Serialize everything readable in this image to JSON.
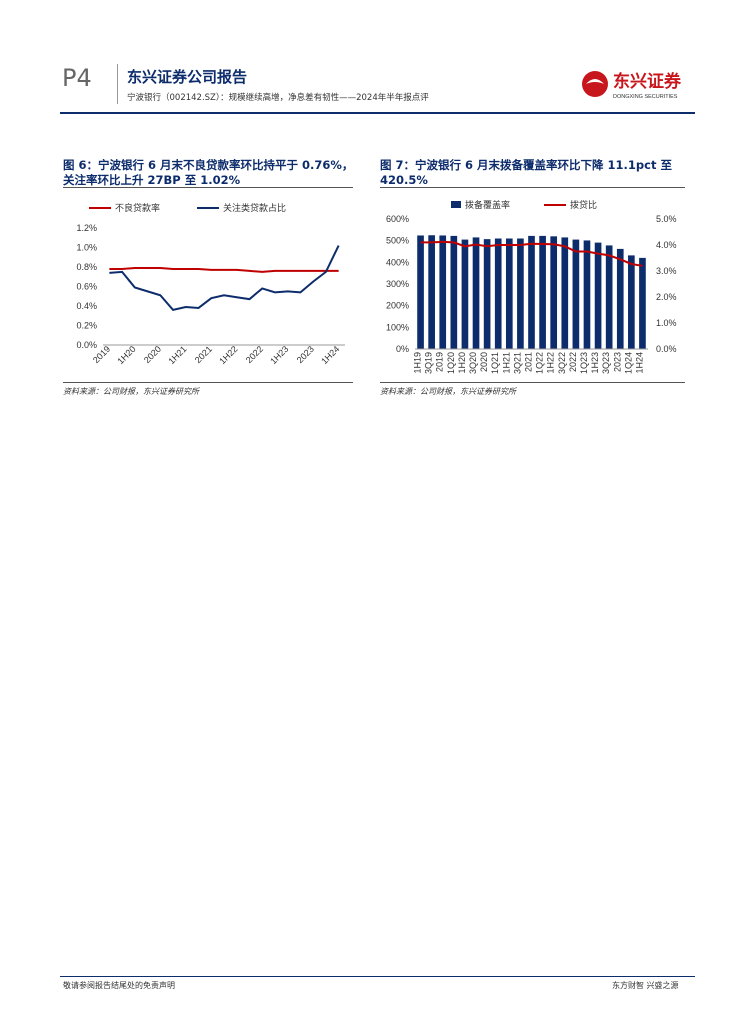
{
  "header": {
    "page": "P4",
    "title": "东兴证券公司报告",
    "subtitle": "宁波银行（002142.SZ）：规模继续高增，净息差有韧性——2024年半年报点评",
    "logo_cn": "东兴证券",
    "logo_en": "DONGXING SECURITIES"
  },
  "chart_data": [
    {
      "type": "line",
      "title": "图 6：宁波银行 6 月末不良贷款率环比持平于 0.76%，关注率环比上升 27BP 至 1.02%",
      "source": "资料来源：公司财报，东兴证券研究所",
      "categories": [
        "2019",
        null,
        "1H20",
        null,
        "2020",
        null,
        "1H21",
        null,
        "2021",
        null,
        "1H22",
        null,
        "2022",
        null,
        "1H23",
        null,
        "2023",
        null,
        "1H24"
      ],
      "series": [
        {
          "name": "不良贷款率",
          "color": "#c00000",
          "values": [
            0.78,
            0.78,
            0.79,
            0.79,
            0.79,
            0.78,
            0.78,
            0.78,
            0.77,
            0.77,
            0.77,
            0.76,
            0.75,
            0.76,
            0.76,
            0.76,
            0.76,
            0.76,
            0.76
          ]
        },
        {
          "name": "关注类贷款占比",
          "color": "#0d2c6c",
          "values": [
            0.74,
            0.75,
            0.59,
            0.55,
            0.51,
            0.36,
            0.39,
            0.38,
            0.48,
            0.51,
            0.49,
            0.47,
            0.58,
            0.54,
            0.55,
            0.54,
            0.65,
            0.75,
            1.02
          ]
        }
      ],
      "ylim": [
        0,
        1.2
      ],
      "yticks": [
        {
          "value": 0,
          "label": "0.0%"
        },
        {
          "value": 0.2,
          "label": "0.2%"
        },
        {
          "value": 0.4,
          "label": "0.4%"
        },
        {
          "value": 0.6,
          "label": "0.6%"
        },
        {
          "value": 0.8,
          "label": "0.8%"
        },
        {
          "value": 1.0,
          "label": "1.0%"
        },
        {
          "value": 1.2,
          "label": "1.2%"
        }
      ],
      "grid": false,
      "legend": "top"
    },
    {
      "type": "bar",
      "title": "图 7：宁波银行 6 月末拨备覆盖率环比下降 11.1pct 至 420.5%",
      "source": "资料来源：公司财报，东兴证券研究所",
      "categories": [
        "1H19",
        "3Q19",
        "2019",
        "1Q20",
        "1H20",
        "3Q20",
        "2020",
        "1Q21",
        "1H21",
        "3Q21",
        "2021",
        "1Q22",
        "1H22",
        "3Q22",
        "2022",
        "1Q23",
        "1H23",
        "3Q23",
        "2023",
        "1Q24",
        "1H24"
      ],
      "series": [
        {
          "name": "拨备覆盖率",
          "type": "bar",
          "color": "#0d2c6c",
          "values": [
            524,
            525,
            524,
            522,
            505,
            515,
            507,
            510,
            510,
            510,
            522,
            522,
            520,
            515,
            505,
            501,
            491,
            478,
            462,
            432,
            420.5
          ]
        },
        {
          "name": "拨贷比",
          "type": "line",
          "axis": "y2",
          "color": "#c00000",
          "values": [
            4.1,
            4.1,
            4.12,
            4.1,
            3.95,
            4.02,
            3.95,
            4.0,
            4.0,
            4.0,
            4.05,
            4.04,
            4.03,
            3.95,
            3.75,
            3.75,
            3.67,
            3.6,
            3.45,
            3.27,
            3.2
          ]
        }
      ],
      "ylim": [
        0,
        600
      ],
      "yticks": [
        {
          "value": 0,
          "label": "0%"
        },
        {
          "value": 100,
          "label": "100%"
        },
        {
          "value": 200,
          "label": "200%"
        },
        {
          "value": 300,
          "label": "300%"
        },
        {
          "value": 400,
          "label": "400%"
        },
        {
          "value": 500,
          "label": "500%"
        },
        {
          "value": 600,
          "label": "600%"
        }
      ],
      "y2lim": [
        0,
        5
      ],
      "y2ticks": [
        {
          "value": 0,
          "label": "0.0%"
        },
        {
          "value": 1,
          "label": "1.0%"
        },
        {
          "value": 2,
          "label": "2.0%"
        },
        {
          "value": 3,
          "label": "3.0%"
        },
        {
          "value": 4,
          "label": "4.0%"
        },
        {
          "value": 5,
          "label": "5.0%"
        }
      ],
      "grid": false,
      "legend": "top"
    }
  ],
  "footer": {
    "disclaimer": "敬请参阅报告结尾处的免责声明",
    "motto": "东方财智 兴盛之源"
  }
}
